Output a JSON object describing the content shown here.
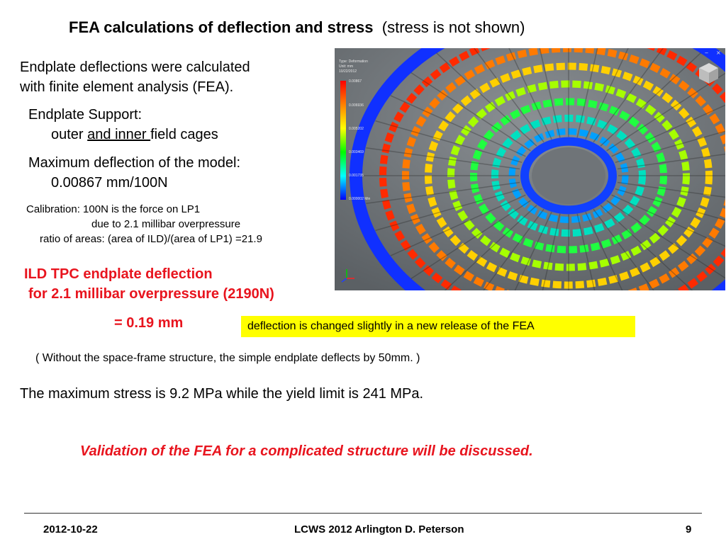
{
  "title": {
    "bold": "FEA calculations of deflection and stress",
    "normal": "(stress is not shown)"
  },
  "intro": {
    "line1": "Endplate deflections were calculated",
    "line2": "with finite element analysis (FEA)."
  },
  "support": {
    "heading": "Endplate Support:",
    "prefix": "outer ",
    "underlined": "and inner ",
    "suffix": "field cages"
  },
  "max_deflection": {
    "heading": "Maximum deflection of the model:",
    "value": "0.00867 mm/100N"
  },
  "calibration": {
    "line1": "Calibration: 100N is the force on LP1",
    "line2": "due to 2.1 millibar overpressure",
    "line3": "ratio of areas: (area of ILD)/(area of LP1) =21.9"
  },
  "ild": {
    "line1": "ILD TPC endplate deflection",
    "line2": "for 2.1 millibar overpressure (2190N)",
    "result": "= 0.19 mm"
  },
  "note_box": "deflection is changed slightly in a new release of the FEA",
  "without": "( Without the space-frame structure, the simple endplate deflects by 50mm. )",
  "stress": "The maximum stress is 9.2 MPa  while the yield limit is 241 MPa.",
  "validation": "Validation of the FEA for a complicated structure will be discussed.",
  "footer": {
    "date": "2012-10-22",
    "center": "LCWS 2012 Arlington D. Peterson",
    "page": "9"
  },
  "fea_legend": {
    "header": [
      "Type: Deformation",
      "Unit: mm",
      "10/22/2012"
    ],
    "ticks": [
      "0.00867",
      "0.006936",
      "0.005202",
      "0.003469",
      "0.001735",
      "0.000002 Min"
    ]
  },
  "colors": {
    "red_text": "#e8141e",
    "highlight": "#ffff00"
  }
}
